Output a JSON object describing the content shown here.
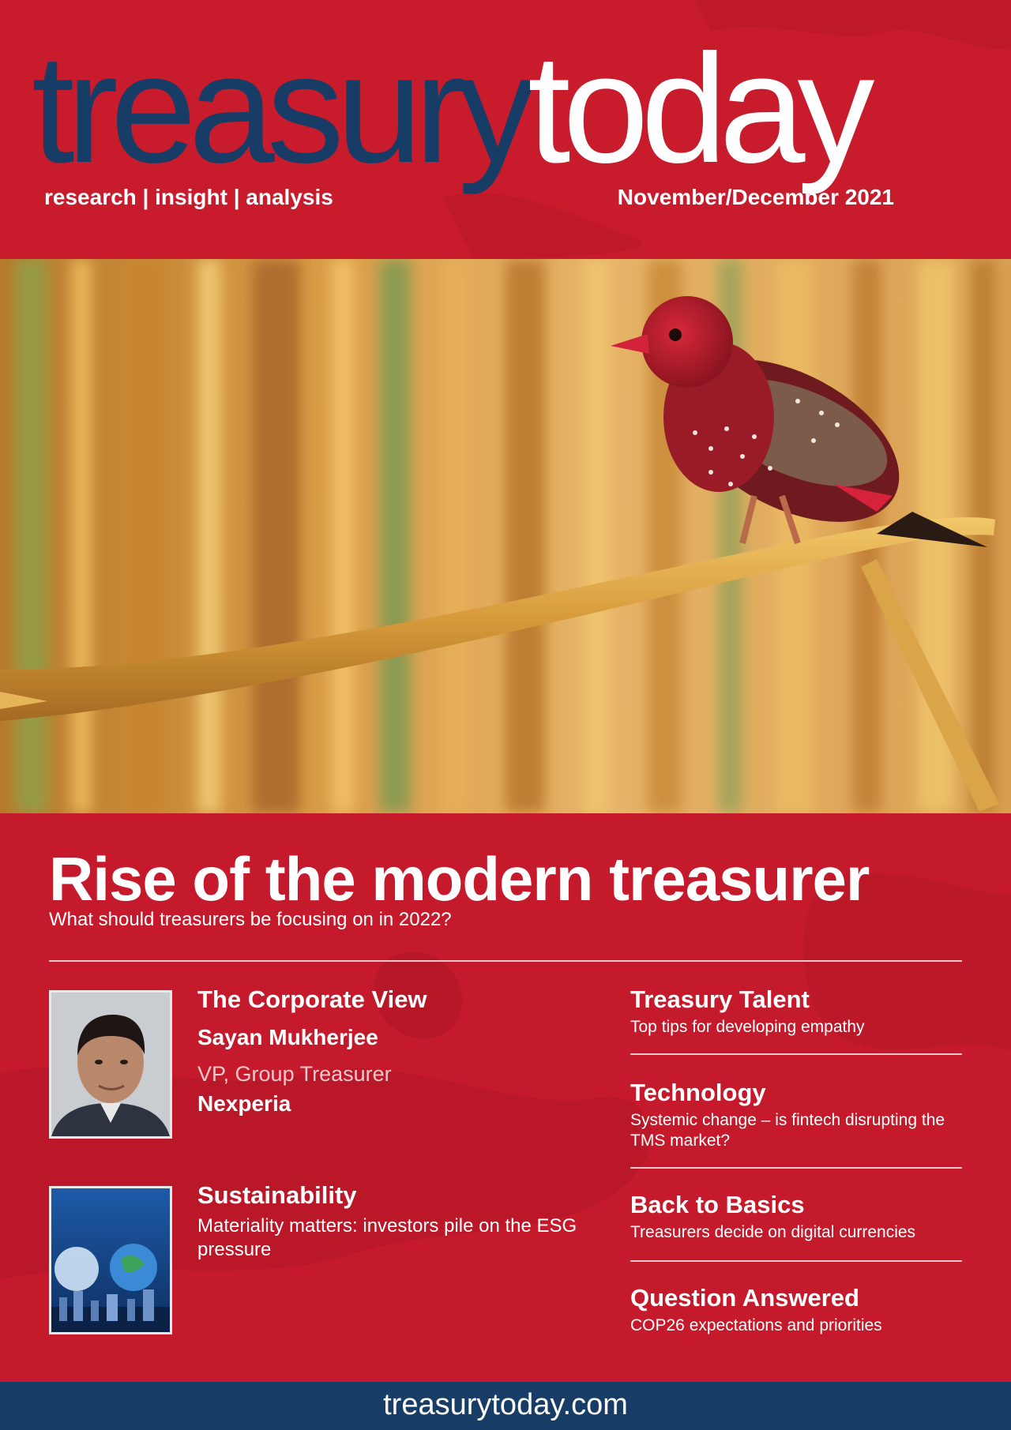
{
  "masthead": {
    "logo_part1": "treasury",
    "logo_part2": "today",
    "tagline": "research | insight | analysis",
    "issue_date": "November/December 2021"
  },
  "cover_story": {
    "headline": "Rise of the modern treasurer",
    "subheadline": "What should treasurers be focusing on in 2022?"
  },
  "features": {
    "corporate_view": {
      "title": "The Corporate View",
      "name": "Sayan Mukherjee",
      "role": "VP, Group Treasurer",
      "company": "Nexperia"
    },
    "sustainability": {
      "title": "Sustainability",
      "text": "Materiality matters: investors pile on the ESG pressure"
    }
  },
  "sidebar": [
    {
      "title": "Treasury Talent",
      "text": "Top tips for developing empathy"
    },
    {
      "title": "Technology",
      "text": "Systemic change – is fintech disrupting the TMS market?"
    },
    {
      "title": "Back to Basics",
      "text": "Treasurers decide on digital currencies"
    },
    {
      "title": "Question Answered",
      "text": "COP26 expectations and priorities"
    }
  ],
  "footer": {
    "url": "treasurytoday.com"
  },
  "colors": {
    "brand_red": "#c41a2b",
    "brand_navy": "#173d66"
  }
}
